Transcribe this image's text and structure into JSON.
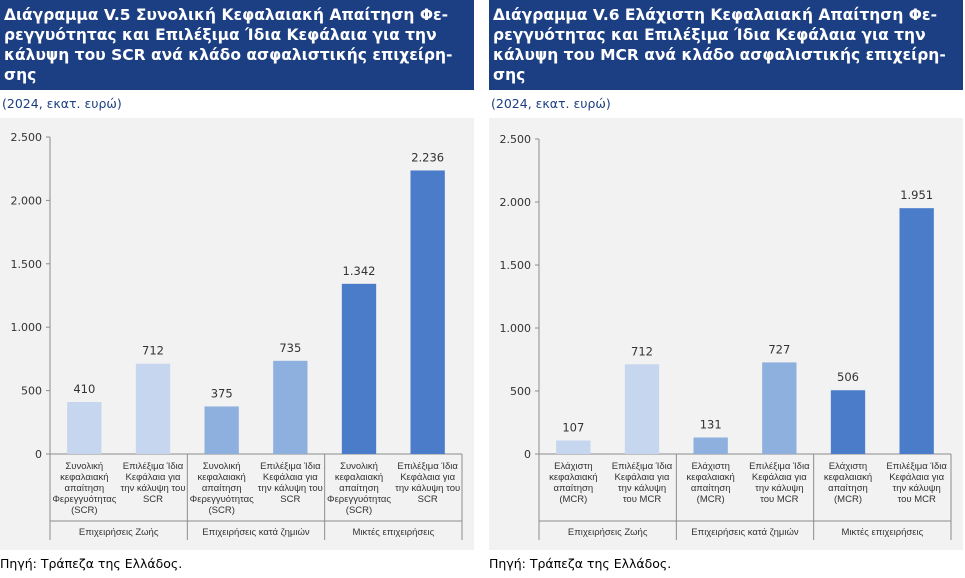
{
  "charts": [
    {
      "title_lines": [
        "Διάγραμμα V.5 Συνολική Κεφαλαιακή Απαίτηση Φε-",
        "ρεγγυότητας και Επιλέξιμα Ίδια Κεφάλαια για την",
        "κάλυψη του SCR ανά κλάδο ασφαλιστικής επιχείρη-",
        "σης"
      ],
      "subtitle": "(2024, εκατ. ευρώ)",
      "source": "Πηγή: Τράπεζα της Ελλάδος."
    },
    {
      "title_lines": [
        "Διάγραμμα V.6 Ελάχιστη Κεφαλαιακή Απαίτηση Φε-",
        "ρεγγυότητας και Επιλέξιμα Ίδια Κεφάλαια για την",
        "κάλυψη του MCR ανά κλάδο ασφαλιστικής επιχείρη-",
        "σης"
      ],
      "subtitle": "(2024, εκατ. ευρώ)",
      "source": "Πηγή: Τράπεζα της Ελλάδος."
    }
  ],
  "chart_data": [
    {
      "type": "bar",
      "title": "Διάγραμμα V.5 Συνολική Κεφαλαιακή Απαίτηση Φερεγγυότητας και Επιλέξιμα Ίδια Κεφάλαια για την κάλυψη του SCR ανά κλάδο ασφαλιστικής επιχείρησης",
      "subtitle": "(2024, εκατ. ευρώ)",
      "ylim": [
        0,
        2500
      ],
      "yticks": [
        0,
        500,
        1000,
        1500,
        2000,
        2500
      ],
      "ytick_labels": [
        "0",
        "500",
        "1.000",
        "1.500",
        "2.000",
        "2.500"
      ],
      "grid": false,
      "bars": [
        {
          "group": 0,
          "label_lines": [
            "Συνολική",
            "κεφαλαιακή",
            "απαίτηση",
            "Φερεγγυότητας",
            "(SCR)"
          ],
          "value": 410,
          "value_label": "410",
          "color": "#c5d6ee"
        },
        {
          "group": 0,
          "label_lines": [
            "Επιλέξιμα Ίδια",
            "Κεφάλαια για",
            "την κάλυψη του",
            "SCR"
          ],
          "value": 712,
          "value_label": "712",
          "color": "#c5d6ee"
        },
        {
          "group": 1,
          "label_lines": [
            "Συνολική",
            "κεφαλαιακή",
            "απαίτηση",
            "Φερεγγυότητας",
            "(SCR)"
          ],
          "value": 375,
          "value_label": "375",
          "color": "#8eb0df"
        },
        {
          "group": 1,
          "label_lines": [
            "Επιλέξιμα Ίδια",
            "Κεφάλαια για",
            "την κάλυψη του",
            "SCR"
          ],
          "value": 735,
          "value_label": "735",
          "color": "#8eb0df"
        },
        {
          "group": 2,
          "label_lines": [
            "Συνολική",
            "κεφαλαιακή",
            "απαίτηση",
            "Φερεγγυότητας",
            "(SCR)"
          ],
          "value": 1342,
          "value_label": "1.342",
          "color": "#4a7cc9"
        },
        {
          "group": 2,
          "label_lines": [
            "Επιλέξιμα Ίδια",
            "Κεφάλαια για",
            "την κάλυψη του",
            "SCR"
          ],
          "value": 2236,
          "value_label": "2.236",
          "color": "#4a7cc9"
        }
      ],
      "groups": [
        "Επιχειρήσεις Ζωής",
        "Επιχειρήσεις κατά ζημιών",
        "Μικτές επιχειρήσεις"
      ]
    },
    {
      "type": "bar",
      "title": "Διάγραμμα V.6 Ελάχιστη Κεφαλαιακή Απαίτηση Φερεγγυότητας και Επιλέξιμα Ίδια Κεφάλαια για την κάλυψη του MCR ανά κλάδο ασφαλιστικής επιχείρησης",
      "subtitle": "(2024, εκατ. ευρώ)",
      "ylim": [
        0,
        2500
      ],
      "yticks": [
        0,
        500,
        1000,
        1500,
        2000,
        2500
      ],
      "ytick_labels": [
        "0",
        "500",
        "1.000",
        "1.500",
        "2.000",
        "2.500"
      ],
      "grid": false,
      "bars": [
        {
          "group": 0,
          "label_lines": [
            "Ελάχιστη",
            "κεφαλαιακή",
            "απαίτηση",
            "(MCR)"
          ],
          "value": 107,
          "value_label": "107",
          "color": "#c5d6ee"
        },
        {
          "group": 0,
          "label_lines": [
            "Επιλέξιμα Ίδια",
            "Κεφάλαια για",
            "την κάλυψη",
            "του MCR"
          ],
          "value": 712,
          "value_label": "712",
          "color": "#c5d6ee"
        },
        {
          "group": 1,
          "label_lines": [
            "Ελάχιστη",
            "κεφαλαιακή",
            "απαίτηση",
            "(MCR)"
          ],
          "value": 131,
          "value_label": "131",
          "color": "#8eb0df"
        },
        {
          "group": 1,
          "label_lines": [
            "Επιλέξιμα Ίδια",
            "Κεφάλαια για",
            "την κάλυψη",
            "του MCR"
          ],
          "value": 727,
          "value_label": "727",
          "color": "#8eb0df"
        },
        {
          "group": 2,
          "label_lines": [
            "Ελάχιστη",
            "κεφαλαιακή",
            "απαίτηση",
            "(MCR)"
          ],
          "value": 506,
          "value_label": "506",
          "color": "#4a7cc9"
        },
        {
          "group": 2,
          "label_lines": [
            "Επιλέξιμα Ίδια",
            "Κεφάλαια για",
            "την κάλυψη",
            "του MCR"
          ],
          "value": 1951,
          "value_label": "1.951",
          "color": "#4a7cc9"
        }
      ],
      "groups": [
        "Επιχειρήσεις Ζωής",
        "Επιχειρήσεις κατά ζημιών",
        "Μικτές επιχειρήσεις"
      ]
    }
  ]
}
